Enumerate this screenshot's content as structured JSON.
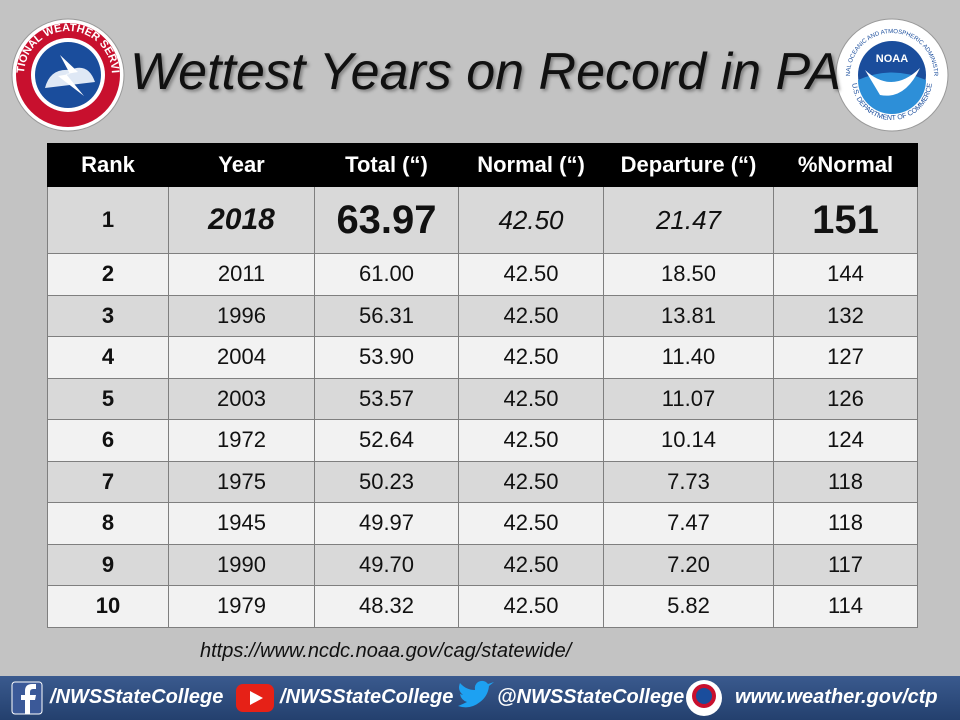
{
  "header": {
    "title": "Wettest Years on Record in PA"
  },
  "logos": {
    "nws": "NATIONAL WEATHER SERVICE",
    "noaa": "NOAA",
    "noaa_ring_top": "NATIONAL OCEANIC AND ATMOSPHERIC ADMINISTRATION",
    "noaa_ring_bottom": "U.S. DEPARTMENT OF COMMERCE"
  },
  "table": {
    "columns": [
      "Rank",
      "Year",
      "Total (“)",
      "Normal (“)",
      "Departure (“)",
      "%Normal"
    ],
    "rows": [
      [
        "1",
        "2018",
        "63.97",
        "42.50",
        "21.47",
        "151"
      ],
      [
        "2",
        "2011",
        "61.00",
        "42.50",
        "18.50",
        "144"
      ],
      [
        "3",
        "1996",
        "56.31",
        "42.50",
        "13.81",
        "132"
      ],
      [
        "4",
        "2004",
        "53.90",
        "42.50",
        "11.40",
        "127"
      ],
      [
        "5",
        "2003",
        "53.57",
        "42.50",
        "11.07",
        "126"
      ],
      [
        "6",
        "1972",
        "52.64",
        "42.50",
        "10.14",
        "124"
      ],
      [
        "7",
        "1975",
        "50.23",
        "42.50",
        "7.73",
        "118"
      ],
      [
        "8",
        "1945",
        "49.97",
        "42.50",
        "7.47",
        "118"
      ],
      [
        "9",
        "1990",
        "49.70",
        "42.50",
        "7.20",
        "117"
      ],
      [
        "10",
        "1979",
        "48.32",
        "42.50",
        "5.82",
        "114"
      ]
    ]
  },
  "source": "https://www.ncdc.noaa.gov/cag/statewide/",
  "footer": {
    "facebook": "/NWSStateCollege",
    "youtube": "/NWSStateCollege",
    "twitter": "@NWSStateCollege",
    "website": "www.weather.gov/ctp"
  }
}
